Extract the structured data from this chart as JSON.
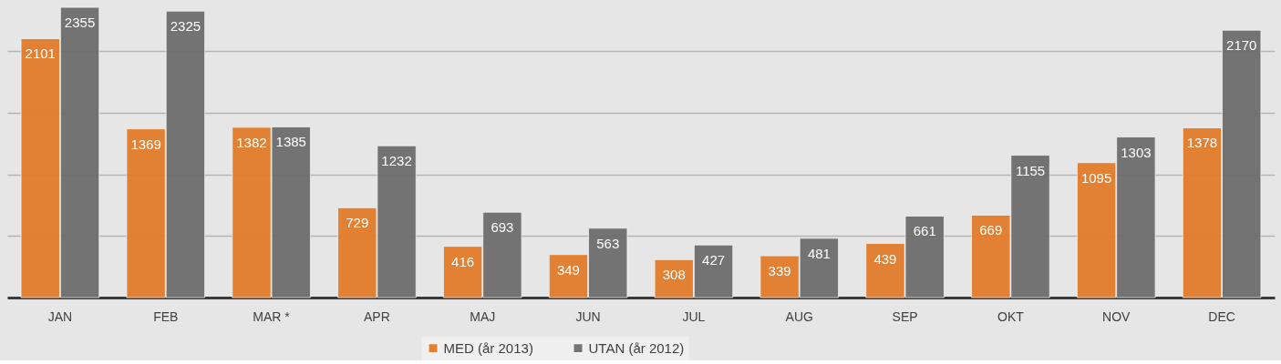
{
  "chart_data": {
    "type": "bar",
    "categories": [
      "JAN",
      "FEB",
      "MAR *",
      "APR",
      "MAJ",
      "JUN",
      "JUL",
      "AUG",
      "SEP",
      "OKT",
      "NOV",
      "DEC"
    ],
    "series": [
      {
        "name": "MED (år 2013)",
        "color": "#e27c2b",
        "values": [
          2101,
          1369,
          1382,
          729,
          416,
          349,
          308,
          339,
          439,
          669,
          1095,
          1378
        ]
      },
      {
        "name": "UTAN (år 2012)",
        "color": "#6d6d6d",
        "values": [
          2355,
          2325,
          1385,
          1232,
          693,
          563,
          427,
          481,
          661,
          1155,
          1303,
          2170
        ]
      }
    ],
    "ylim": [
      0,
      2400
    ],
    "yticks": [
      {
        "value": 0,
        "label": null
      },
      {
        "value": 500,
        "label": null
      },
      {
        "value": 1000,
        "label": null
      },
      {
        "value": 1500,
        "label": null
      },
      {
        "value": 2000,
        "label": null
      }
    ],
    "grid": "y",
    "tick_labels": "x",
    "legend": "bottom",
    "data_labels": true
  }
}
